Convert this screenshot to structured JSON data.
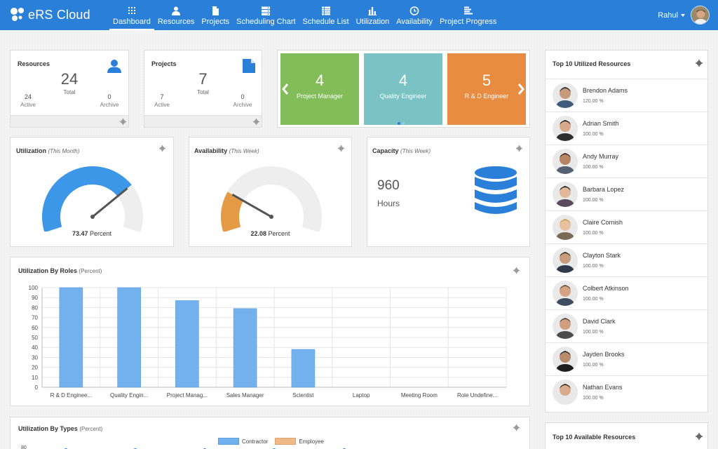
{
  "app": {
    "logo_text": "eRS Cloud"
  },
  "nav": [
    {
      "label": "Dashboard",
      "icon": "dashboard-icon",
      "active": true
    },
    {
      "label": "Resources",
      "icon": "user-icon"
    },
    {
      "label": "Projects",
      "icon": "file-icon"
    },
    {
      "label": "Scheduling Chart",
      "icon": "server-icon"
    },
    {
      "label": "Schedule List",
      "icon": "list-icon"
    },
    {
      "label": "Utilization",
      "icon": "bar-chart-icon"
    },
    {
      "label": "Availability",
      "icon": "clock-icon"
    },
    {
      "label": "Project Progress",
      "icon": "progress-icon"
    }
  ],
  "user": {
    "name": "Rahul"
  },
  "resources_card": {
    "title": "Resources",
    "total": "24",
    "total_label": "Total",
    "active": "24",
    "active_label": "Active",
    "archive": "0",
    "archive_label": "Archive"
  },
  "projects_card": {
    "title": "Projects",
    "total": "7",
    "total_label": "Total",
    "active": "7",
    "active_label": "Active",
    "archive": "0",
    "archive_label": "Archive"
  },
  "role_tiles": [
    {
      "count": "4",
      "label": "Project Manager",
      "color": "#82bd5a"
    },
    {
      "count": "4",
      "label": "Quality Engineer",
      "color": "#7bc2c4"
    },
    {
      "count": "5",
      "label": "R & D Engineer",
      "color": "#e88c41"
    }
  ],
  "utilization_gauge": {
    "title": "Utilization",
    "period": "(This Month)",
    "value": 73.47,
    "value_text": "73.47",
    "unit": "Percent",
    "color": "#3d97e8"
  },
  "availability_gauge": {
    "title": "Availability",
    "period": "(This Week)",
    "value": 22.08,
    "value_text": "22.08",
    "unit": "Percent",
    "color": "#e59a46"
  },
  "capacity": {
    "title": "Capacity",
    "period": "(This Week)",
    "value": "960",
    "unit": "Hours",
    "icon": "database-icon"
  },
  "top_utilized": {
    "title": "Top 10 Utilized Resources",
    "items": [
      {
        "name": "Brendon Adams",
        "value": "120.00 %"
      },
      {
        "name": "Adrian Smith",
        "value": "100.00 %"
      },
      {
        "name": "Andy Murray",
        "value": "100.00 %"
      },
      {
        "name": "Barbara Lopez",
        "value": "100.00 %"
      },
      {
        "name": "Claire Cornish",
        "value": "100.00 %"
      },
      {
        "name": "Clayton Stark",
        "value": "100.00 %"
      },
      {
        "name": "Colbert Atkinson",
        "value": "100.00 %"
      },
      {
        "name": "David Clark",
        "value": "100.00 %"
      },
      {
        "name": "Jayden Brooks",
        "value": "100.00 %"
      },
      {
        "name": "Nathan Evans",
        "value": "100.00 %"
      }
    ]
  },
  "top_available": {
    "title": "Top 10 Available Resources"
  },
  "roles_chart_title": {
    "title": "Utilization By Roles",
    "unit": "(Percent)"
  },
  "types_chart": {
    "title": "Utilization By Types",
    "unit": "(Percent)",
    "legend": [
      {
        "name": "Contractor",
        "color": "#72b0ee"
      },
      {
        "name": "Employee",
        "color": "#f0b98a"
      }
    ],
    "tick_top": "80"
  },
  "chart_data": {
    "type": "bar",
    "categories": [
      "R & D Enginee...",
      "Quality Engin...",
      "Project Manag...",
      "Sales Manager",
      "Scientist",
      "Laptop",
      "Meeting Room",
      "Role Undefine..."
    ],
    "values": [
      100,
      100,
      87,
      79,
      38,
      0,
      0,
      0
    ],
    "yticks": [
      "0",
      "10",
      "20",
      "30",
      "40",
      "50",
      "60",
      "70",
      "80",
      "90",
      "100"
    ],
    "ylim": [
      0,
      100
    ],
    "bar_color": "#72b0ee"
  }
}
